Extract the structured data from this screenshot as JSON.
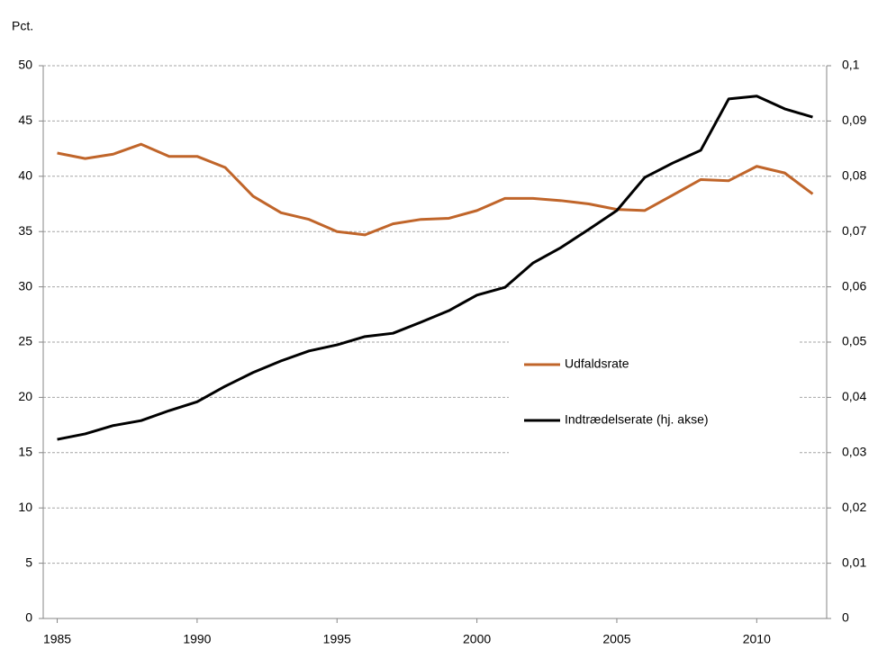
{
  "chart_data": {
    "type": "line",
    "y_axis_label": "Pct.",
    "x": [
      1985,
      1986,
      1987,
      1988,
      1989,
      1990,
      1991,
      1992,
      1993,
      1994,
      1995,
      1996,
      1997,
      1998,
      1999,
      2000,
      2001,
      2002,
      2003,
      2004,
      2005,
      2006,
      2007,
      2008,
      2009,
      2010,
      2011,
      2012
    ],
    "xlim": [
      1984.5,
      2012.5
    ],
    "xticks": [
      1985,
      1990,
      1995,
      2000,
      2005,
      2010
    ],
    "ylim": [
      0,
      50
    ],
    "yticks": [
      0,
      5,
      10,
      15,
      20,
      25,
      30,
      35,
      40,
      45,
      50
    ],
    "y2lim": [
      0,
      0.1
    ],
    "y2ticks": [
      0,
      {
        "value": 0.01,
        "label": "0,01"
      },
      {
        "value": 0.02,
        "label": "0,02"
      },
      {
        "value": 0.03,
        "label": "0,03"
      },
      {
        "value": 0.04,
        "label": "0,04"
      },
      {
        "value": 0.05,
        "label": "0,05"
      },
      {
        "value": 0.06,
        "label": "0,06"
      },
      {
        "value": 0.07,
        "label": "0,07"
      },
      {
        "value": 0.08,
        "label": "0,08"
      },
      {
        "value": 0.09,
        "label": "0,09"
      },
      {
        "value": 0.1,
        "label": "0,1"
      }
    ],
    "grid": true,
    "legend": "center",
    "series": [
      {
        "name": "Udfaldsrate",
        "color": "#c0652a",
        "values": [
          42.1,
          41.6,
          42.0,
          42.9,
          41.8,
          41.8,
          40.8,
          38.2,
          36.7,
          36.1,
          35.0,
          34.7,
          35.7,
          36.1,
          36.2,
          36.9,
          38.0,
          38.0,
          37.8,
          37.5,
          37.0,
          36.9,
          38.3,
          39.7,
          39.6,
          40.9,
          40.3,
          38.4
        ]
      },
      {
        "name": "Indtrædelserate (hj. akse)",
        "color": "#000000",
        "axis": "y2",
        "values": [
          0.0324,
          0.0334,
          0.0349,
          0.0358,
          0.0376,
          0.0392,
          0.042,
          0.0445,
          0.0466,
          0.0484,
          0.0495,
          0.051,
          0.0516,
          0.0536,
          0.0557,
          0.0585,
          0.0599,
          0.0643,
          0.0671,
          0.0704,
          0.0738,
          0.0798,
          0.0824,
          0.0847,
          0.094,
          0.0945,
          0.0922,
          0.0907
        ]
      }
    ]
  }
}
